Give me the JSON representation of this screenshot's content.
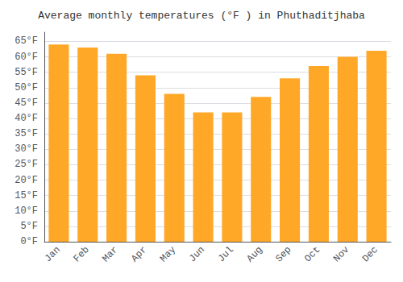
{
  "chart_data": {
    "type": "bar",
    "title": "Average monthly temperatures (°F ) in Phuthaditjhaba",
    "categories": [
      "Jan",
      "Feb",
      "Mar",
      "Apr",
      "May",
      "Jun",
      "Jul",
      "Aug",
      "Sep",
      "Oct",
      "Nov",
      "Dec"
    ],
    "values": [
      64,
      63,
      61,
      54,
      48,
      42,
      42,
      47,
      53,
      57,
      60,
      62
    ],
    "color": "#FFA726",
    "ylim": [
      0,
      68
    ],
    "yticks": [
      {
        "value": 0,
        "label": "0°F"
      },
      {
        "value": 5,
        "label": "5°F"
      },
      {
        "value": 10,
        "label": "10°F"
      },
      {
        "value": 15,
        "label": "15°F"
      },
      {
        "value": 20,
        "label": "20°F"
      },
      {
        "value": 25,
        "label": "25°F"
      },
      {
        "value": 30,
        "label": "30°F"
      },
      {
        "value": 35,
        "label": "35°F"
      },
      {
        "value": 40,
        "label": "40°F"
      },
      {
        "value": 45,
        "label": "45°F"
      },
      {
        "value": 50,
        "label": "50°F"
      },
      {
        "value": 55,
        "label": "55°F"
      },
      {
        "value": 60,
        "label": "60°F"
      },
      {
        "value": 65,
        "label": "65°F"
      }
    ],
    "grid": true
  }
}
